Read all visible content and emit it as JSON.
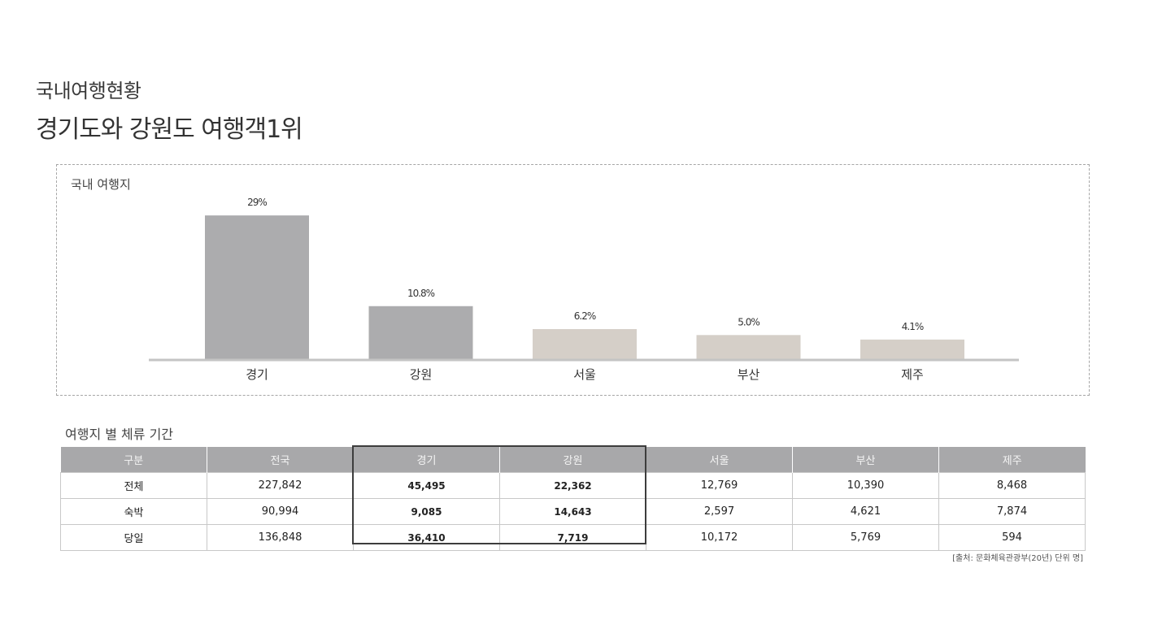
{
  "header": {
    "subtitle": "국내여행현황",
    "title": "경기도와 강원도 여행객1위"
  },
  "chart_data": {
    "type": "bar",
    "title": "국내 여행지",
    "categories": [
      "경기",
      "강원",
      "서울",
      "부산",
      "제주"
    ],
    "values": [
      29,
      10.8,
      6.2,
      5.0,
      4.1
    ],
    "value_labels": [
      "29%",
      "10.8%",
      "6.2%",
      "5.0%",
      "4.1%"
    ],
    "unit": "%",
    "ylim": [
      0,
      30
    ],
    "grid": false,
    "bar_colors": [
      "#acacae",
      "#acacae",
      "#d5cfc8",
      "#d5cfc8",
      "#d5cfc8"
    ],
    "baseline_color": "#c4c4c4"
  },
  "table": {
    "title": "여행지 별 체류 기간",
    "headers": [
      "구분",
      "전국",
      "경기",
      "강원",
      "서울",
      "부산",
      "제주"
    ],
    "rows": [
      [
        "전체",
        "227,842",
        "45,495",
        "22,362",
        "12,769",
        "10,390",
        "8,468"
      ],
      [
        "숙박",
        "90,994",
        "9,085",
        "14,643",
        "2,597",
        "4,621",
        "7,874"
      ],
      [
        "당일",
        "136,848",
        "36,410",
        "7,719",
        "10,172",
        "5,769",
        "594"
      ]
    ],
    "highlight_columns": [
      "경기",
      "강원"
    ],
    "header_color": "#a8a8aa",
    "highlight_border_color": "#3d3d3d"
  },
  "source": "[출처: 문화체육관광부(20년) 단위 명]"
}
